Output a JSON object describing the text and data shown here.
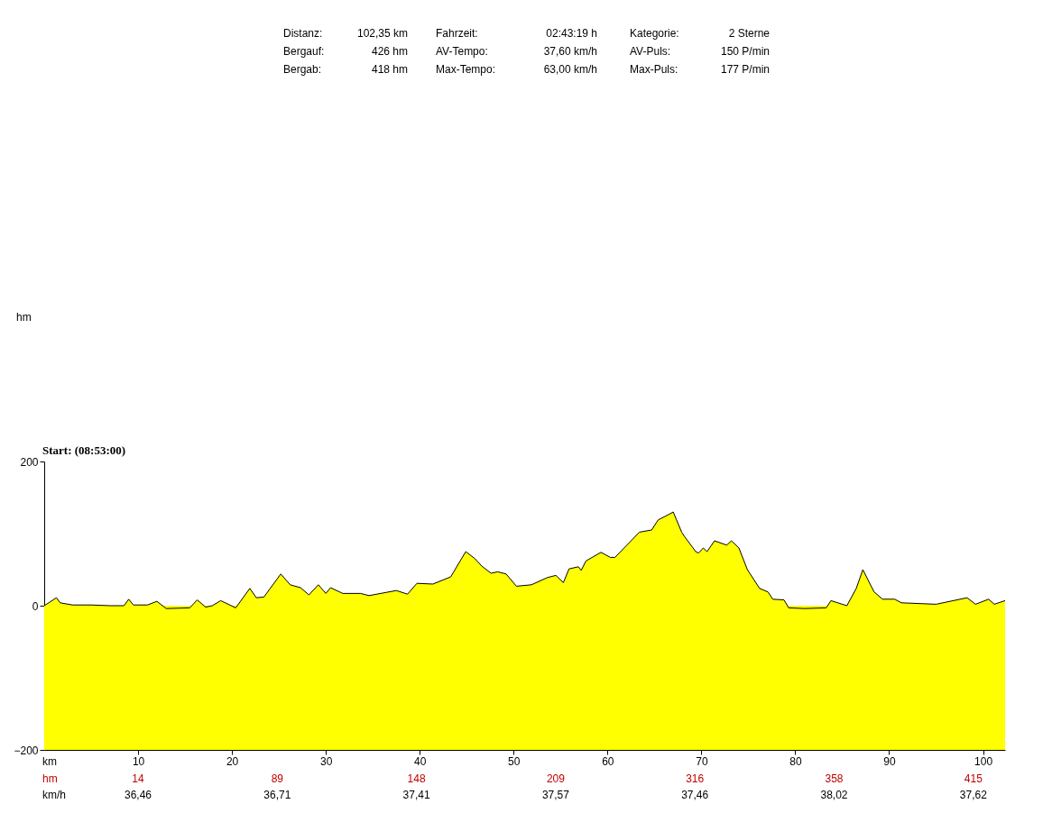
{
  "chart_data": {
    "type": "area",
    "xlabel": "km",
    "xlim": [
      0,
      102.35
    ],
    "xticks": [
      10,
      20,
      30,
      40,
      50,
      60,
      70,
      80,
      90,
      100
    ],
    "ylim": [
      -200,
      200
    ],
    "yticks": [
      -200,
      0,
      200
    ],
    "series": [
      {
        "color": "#ffff00",
        "x": [
          0,
          1.3,
          1.7,
          3,
          5,
          7,
          8.5,
          9,
          9.5,
          11,
          12,
          13,
          15.5,
          16.3,
          17.2,
          17.9,
          18.8,
          20.4,
          21.9,
          22.6,
          23.4,
          25.2,
          26.2,
          27.3,
          28.2,
          29.2,
          30,
          30.5,
          31.8,
          33.7,
          34.6,
          37.5,
          38.7,
          39.7,
          41.4,
          43.3,
          44.9,
          45.9,
          46.6,
          47.6,
          48.3,
          49.2,
          50.3,
          51.9,
          53.6,
          54.5,
          55.3,
          55.9,
          56.9,
          57.2,
          57.7,
          59.3,
          60.3,
          60.8,
          63.4,
          64.7,
          65.4,
          66.6,
          67,
          67.9,
          68.2,
          69.4,
          69.7,
          70.2,
          70.6,
          71.4,
          72.7,
          73.2,
          74,
          74.9,
          76.2,
          77.1,
          77.6,
          78.8,
          79.3,
          81,
          83.3,
          83.8,
          85.5,
          86.5,
          87.2,
          88.4,
          89.3,
          90.6,
          91.3,
          95,
          98.3,
          99.2,
          100.6,
          101.2,
          102.35
        ],
        "values": [
          0,
          11,
          4,
          1,
          1,
          0,
          0,
          9,
          1,
          1,
          6,
          -4,
          -3,
          8,
          -2,
          0,
          7,
          -3,
          24,
          11,
          12,
          44,
          29,
          25,
          15,
          29,
          17,
          25,
          17,
          17,
          14,
          21,
          16,
          31,
          30,
          40,
          75,
          65,
          55,
          45,
          47,
          44,
          27,
          29,
          39,
          42,
          32,
          51,
          54,
          49,
          62,
          74,
          67,
          67,
          102,
          105,
          119,
          127,
          130,
          102,
          96,
          75,
          73,
          80,
          75,
          90,
          84,
          90,
          80,
          50,
          24,
          19,
          9,
          8,
          -3,
          -4,
          -3,
          7,
          0,
          24,
          50,
          19,
          9,
          9,
          4,
          2,
          11,
          2,
          9,
          2,
          7
        ]
      }
    ],
    "annotations": [
      "Distanz:",
      "102,35 km",
      "Fahrzeit:",
      "02:43:19 h",
      "Kategorie:",
      "2 Sterne",
      "Bergauf:",
      "426 hm",
      "AV-Tempo:",
      "37,60 km/h",
      "AV-Puls:",
      "150 P/min",
      "Bergab:",
      "418 hm",
      "Max-Tempo:",
      "63,00 km/h",
      "Max-Puls:",
      "177 P/min",
      "Start: (08:53:00)",
      "hm",
      "km/h",
      "14",
      "89",
      "148",
      "209",
      "316",
      "358",
      "415",
      "36,46",
      "36,71",
      "37,41",
      "37,57",
      "37,46",
      "38,02",
      "37,62",
      "hm"
    ]
  }
}
